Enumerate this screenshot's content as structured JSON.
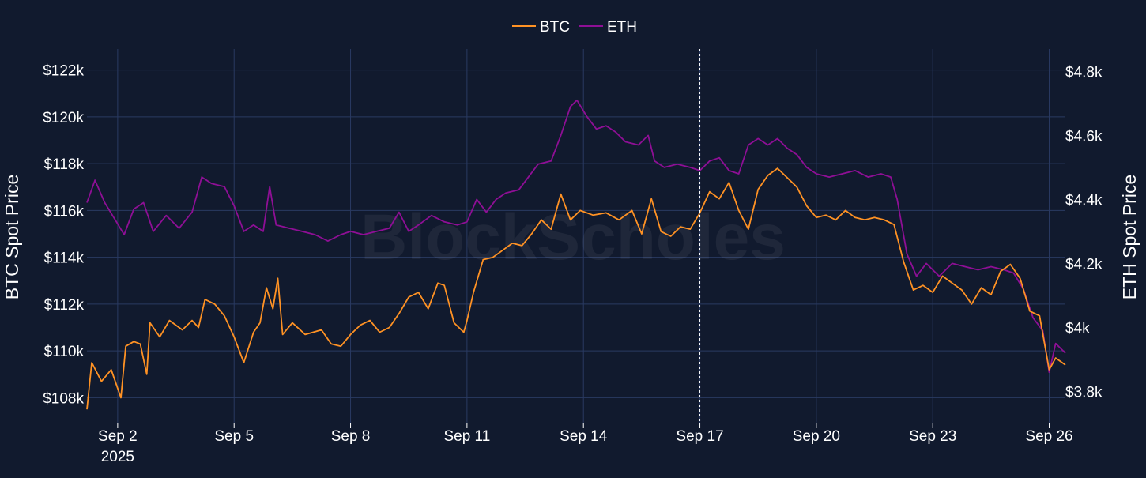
{
  "chart_data": {
    "type": "line",
    "watermark": "BlockScholes",
    "legend_position": "top-center",
    "grid": true,
    "colors": {
      "background": "#111a2e",
      "grid": "#2a3a62",
      "btc": "#ff9224",
      "eth": "#8e0f95",
      "marker_line": "#ffffff"
    },
    "x_axis": {
      "type": "date",
      "range": [
        "2025-09-01T05:00",
        "2025-09-26T10:00"
      ],
      "ticks": [
        {
          "date": "2025-09-02",
          "label": "Sep 2",
          "sublabel": "2025"
        },
        {
          "date": "2025-09-05",
          "label": "Sep 5"
        },
        {
          "date": "2025-09-08",
          "label": "Sep 8"
        },
        {
          "date": "2025-09-11",
          "label": "Sep 11"
        },
        {
          "date": "2025-09-14",
          "label": "Sep 14"
        },
        {
          "date": "2025-09-17",
          "label": "Sep 17"
        },
        {
          "date": "2025-09-20",
          "label": "Sep 20"
        },
        {
          "date": "2025-09-23",
          "label": "Sep 23"
        },
        {
          "date": "2025-09-26",
          "label": "Sep 26"
        }
      ]
    },
    "y_left": {
      "title": "BTC Spot Price",
      "range": [
        106900,
        122900
      ],
      "ticks": [
        {
          "value": 108000,
          "label": "$108k"
        },
        {
          "value": 110000,
          "label": "$110k"
        },
        {
          "value": 112000,
          "label": "$112k"
        },
        {
          "value": 114000,
          "label": "$114k"
        },
        {
          "value": 116000,
          "label": "$116k"
        },
        {
          "value": 118000,
          "label": "$118k"
        },
        {
          "value": 120000,
          "label": "$120k"
        },
        {
          "value": 122000,
          "label": "$122k"
        }
      ]
    },
    "y_right": {
      "title": "ETH Spot Price",
      "range": [
        3700,
        4870
      ],
      "ticks": [
        {
          "value": 3800,
          "label": "$3.8k"
        },
        {
          "value": 4000,
          "label": "$4k"
        },
        {
          "value": 4200,
          "label": "$4.2k"
        },
        {
          "value": 4400,
          "label": "$4.4k"
        },
        {
          "value": 4600,
          "label": "$4.6k"
        },
        {
          "value": 4800,
          "label": "$4.8k"
        }
      ]
    },
    "vertical_marker": "2025-09-17",
    "series": [
      {
        "name": "BTC",
        "axis": "left",
        "points": [
          [
            "2025-09-01T05:00",
            107500
          ],
          [
            "2025-09-01T08:00",
            109500
          ],
          [
            "2025-09-01T14:00",
            108700
          ],
          [
            "2025-09-01T20:00",
            109200
          ],
          [
            "2025-09-02T02:00",
            108000
          ],
          [
            "2025-09-02T05:00",
            110200
          ],
          [
            "2025-09-02T10:00",
            110400
          ],
          [
            "2025-09-02T14:00",
            110300
          ],
          [
            "2025-09-02T18:00",
            109000
          ],
          [
            "2025-09-02T20:00",
            111200
          ],
          [
            "2025-09-03T02:00",
            110600
          ],
          [
            "2025-09-03T08:00",
            111300
          ],
          [
            "2025-09-03T16:00",
            110900
          ],
          [
            "2025-09-03T22:00",
            111300
          ],
          [
            "2025-09-04T02:00",
            111000
          ],
          [
            "2025-09-04T06:00",
            112200
          ],
          [
            "2025-09-04T12:00",
            112000
          ],
          [
            "2025-09-04T18:00",
            111500
          ],
          [
            "2025-09-05T00:00",
            110600
          ],
          [
            "2025-09-05T06:00",
            109500
          ],
          [
            "2025-09-05T12:00",
            110800
          ],
          [
            "2025-09-05T16:00",
            111200
          ],
          [
            "2025-09-05T20:00",
            112700
          ],
          [
            "2025-09-06T00:00",
            111800
          ],
          [
            "2025-09-06T03:00",
            113100
          ],
          [
            "2025-09-06T06:00",
            110700
          ],
          [
            "2025-09-06T12:00",
            111200
          ],
          [
            "2025-09-06T20:00",
            110700
          ],
          [
            "2025-09-07T06:00",
            110900
          ],
          [
            "2025-09-07T12:00",
            110300
          ],
          [
            "2025-09-07T18:00",
            110200
          ],
          [
            "2025-09-08T00:00",
            110700
          ],
          [
            "2025-09-08T06:00",
            111100
          ],
          [
            "2025-09-08T12:00",
            111300
          ],
          [
            "2025-09-08T18:00",
            110800
          ],
          [
            "2025-09-09T00:00",
            111000
          ],
          [
            "2025-09-09T06:00",
            111600
          ],
          [
            "2025-09-09T12:00",
            112300
          ],
          [
            "2025-09-09T18:00",
            112500
          ],
          [
            "2025-09-10T00:00",
            111800
          ],
          [
            "2025-09-10T06:00",
            112900
          ],
          [
            "2025-09-10T10:00",
            112800
          ],
          [
            "2025-09-10T16:00",
            111200
          ],
          [
            "2025-09-10T22:00",
            110800
          ],
          [
            "2025-09-11T00:00",
            111300
          ],
          [
            "2025-09-11T04:00",
            112500
          ],
          [
            "2025-09-11T10:00",
            113900
          ],
          [
            "2025-09-11T16:00",
            114000
          ],
          [
            "2025-09-11T22:00",
            114300
          ],
          [
            "2025-09-12T04:00",
            114600
          ],
          [
            "2025-09-12T10:00",
            114500
          ],
          [
            "2025-09-12T16:00",
            115000
          ],
          [
            "2025-09-12T22:00",
            115600
          ],
          [
            "2025-09-13T04:00",
            115200
          ],
          [
            "2025-09-13T10:00",
            116700
          ],
          [
            "2025-09-13T16:00",
            115600
          ],
          [
            "2025-09-13T22:00",
            116000
          ],
          [
            "2025-09-14T06:00",
            115800
          ],
          [
            "2025-09-14T14:00",
            115900
          ],
          [
            "2025-09-14T22:00",
            115600
          ],
          [
            "2025-09-15T06:00",
            116000
          ],
          [
            "2025-09-15T12:00",
            115000
          ],
          [
            "2025-09-15T18:00",
            116500
          ],
          [
            "2025-09-16T00:00",
            115100
          ],
          [
            "2025-09-16T06:00",
            114900
          ],
          [
            "2025-09-16T12:00",
            115300
          ],
          [
            "2025-09-16T18:00",
            115200
          ],
          [
            "2025-09-17T00:00",
            115900
          ],
          [
            "2025-09-17T06:00",
            116800
          ],
          [
            "2025-09-17T12:00",
            116500
          ],
          [
            "2025-09-17T18:00",
            117200
          ],
          [
            "2025-09-18T00:00",
            116000
          ],
          [
            "2025-09-18T06:00",
            115200
          ],
          [
            "2025-09-18T12:00",
            116900
          ],
          [
            "2025-09-18T18:00",
            117500
          ],
          [
            "2025-09-19T00:00",
            117800
          ],
          [
            "2025-09-19T06:00",
            117400
          ],
          [
            "2025-09-19T12:00",
            117000
          ],
          [
            "2025-09-19T18:00",
            116200
          ],
          [
            "2025-09-20T00:00",
            115700
          ],
          [
            "2025-09-20T06:00",
            115800
          ],
          [
            "2025-09-20T12:00",
            115600
          ],
          [
            "2025-09-20T18:00",
            116000
          ],
          [
            "2025-09-21T00:00",
            115700
          ],
          [
            "2025-09-21T06:00",
            115600
          ],
          [
            "2025-09-21T12:00",
            115700
          ],
          [
            "2025-09-21T18:00",
            115600
          ],
          [
            "2025-09-22T00:00",
            115400
          ],
          [
            "2025-09-22T06:00",
            113800
          ],
          [
            "2025-09-22T12:00",
            112600
          ],
          [
            "2025-09-22T18:00",
            112800
          ],
          [
            "2025-09-23T00:00",
            112500
          ],
          [
            "2025-09-23T06:00",
            113200
          ],
          [
            "2025-09-23T12:00",
            112900
          ],
          [
            "2025-09-23T18:00",
            112600
          ],
          [
            "2025-09-24T00:00",
            112000
          ],
          [
            "2025-09-24T06:00",
            112700
          ],
          [
            "2025-09-24T12:00",
            112400
          ],
          [
            "2025-09-24T18:00",
            113400
          ],
          [
            "2025-09-25T00:00",
            113700
          ],
          [
            "2025-09-25T06:00",
            113100
          ],
          [
            "2025-09-25T12:00",
            111700
          ],
          [
            "2025-09-25T18:00",
            111500
          ],
          [
            "2025-09-26T00:00",
            109200
          ],
          [
            "2025-09-26T04:00",
            109700
          ],
          [
            "2025-09-26T10:00",
            109400
          ]
        ]
      },
      {
        "name": "ETH",
        "axis": "right",
        "points": [
          [
            "2025-09-01T05:00",
            4390
          ],
          [
            "2025-09-01T10:00",
            4460
          ],
          [
            "2025-09-01T16:00",
            4390
          ],
          [
            "2025-09-01T22:00",
            4340
          ],
          [
            "2025-09-02T04:00",
            4290
          ],
          [
            "2025-09-02T10:00",
            4370
          ],
          [
            "2025-09-02T16:00",
            4390
          ],
          [
            "2025-09-02T22:00",
            4300
          ],
          [
            "2025-09-03T06:00",
            4350
          ],
          [
            "2025-09-03T14:00",
            4310
          ],
          [
            "2025-09-03T22:00",
            4360
          ],
          [
            "2025-09-04T04:00",
            4470
          ],
          [
            "2025-09-04T10:00",
            4450
          ],
          [
            "2025-09-04T18:00",
            4440
          ],
          [
            "2025-09-05T00:00",
            4380
          ],
          [
            "2025-09-05T06:00",
            4300
          ],
          [
            "2025-09-05T12:00",
            4320
          ],
          [
            "2025-09-05T18:00",
            4300
          ],
          [
            "2025-09-05T22:00",
            4440
          ],
          [
            "2025-09-06T02:00",
            4320
          ],
          [
            "2025-09-06T10:00",
            4310
          ],
          [
            "2025-09-06T18:00",
            4300
          ],
          [
            "2025-09-07T02:00",
            4290
          ],
          [
            "2025-09-07T10:00",
            4270
          ],
          [
            "2025-09-07T18:00",
            4290
          ],
          [
            "2025-09-08T00:00",
            4300
          ],
          [
            "2025-09-08T08:00",
            4290
          ],
          [
            "2025-09-08T16:00",
            4300
          ],
          [
            "2025-09-09T00:00",
            4310
          ],
          [
            "2025-09-09T06:00",
            4360
          ],
          [
            "2025-09-09T12:00",
            4300
          ],
          [
            "2025-09-09T18:00",
            4320
          ],
          [
            "2025-09-10T02:00",
            4350
          ],
          [
            "2025-09-10T10:00",
            4330
          ],
          [
            "2025-09-10T18:00",
            4320
          ],
          [
            "2025-09-11T00:00",
            4330
          ],
          [
            "2025-09-11T06:00",
            4400
          ],
          [
            "2025-09-11T12:00",
            4360
          ],
          [
            "2025-09-11T18:00",
            4400
          ],
          [
            "2025-09-12T00:00",
            4420
          ],
          [
            "2025-09-12T08:00",
            4430
          ],
          [
            "2025-09-12T14:00",
            4470
          ],
          [
            "2025-09-12T20:00",
            4510
          ],
          [
            "2025-09-13T04:00",
            4520
          ],
          [
            "2025-09-13T10:00",
            4600
          ],
          [
            "2025-09-13T16:00",
            4690
          ],
          [
            "2025-09-13T20:00",
            4710
          ],
          [
            "2025-09-14T02:00",
            4660
          ],
          [
            "2025-09-14T08:00",
            4620
          ],
          [
            "2025-09-14T14:00",
            4630
          ],
          [
            "2025-09-14T20:00",
            4610
          ],
          [
            "2025-09-15T02:00",
            4580
          ],
          [
            "2025-09-15T10:00",
            4570
          ],
          [
            "2025-09-15T16:00",
            4600
          ],
          [
            "2025-09-15T20:00",
            4520
          ],
          [
            "2025-09-16T02:00",
            4500
          ],
          [
            "2025-09-16T10:00",
            4510
          ],
          [
            "2025-09-16T18:00",
            4500
          ],
          [
            "2025-09-17T00:00",
            4490
          ],
          [
            "2025-09-17T06:00",
            4520
          ],
          [
            "2025-09-17T12:00",
            4530
          ],
          [
            "2025-09-17T18:00",
            4490
          ],
          [
            "2025-09-18T00:00",
            4480
          ],
          [
            "2025-09-18T06:00",
            4570
          ],
          [
            "2025-09-18T12:00",
            4590
          ],
          [
            "2025-09-18T18:00",
            4570
          ],
          [
            "2025-09-19T00:00",
            4590
          ],
          [
            "2025-09-19T06:00",
            4560
          ],
          [
            "2025-09-19T12:00",
            4540
          ],
          [
            "2025-09-19T18:00",
            4500
          ],
          [
            "2025-09-20T00:00",
            4480
          ],
          [
            "2025-09-20T08:00",
            4470
          ],
          [
            "2025-09-20T16:00",
            4480
          ],
          [
            "2025-09-21T00:00",
            4490
          ],
          [
            "2025-09-21T08:00",
            4470
          ],
          [
            "2025-09-21T16:00",
            4480
          ],
          [
            "2025-09-21T22:00",
            4470
          ],
          [
            "2025-09-22T02:00",
            4400
          ],
          [
            "2025-09-22T08:00",
            4230
          ],
          [
            "2025-09-22T14:00",
            4160
          ],
          [
            "2025-09-22T20:00",
            4200
          ],
          [
            "2025-09-23T04:00",
            4160
          ],
          [
            "2025-09-23T12:00",
            4200
          ],
          [
            "2025-09-23T20:00",
            4190
          ],
          [
            "2025-09-24T04:00",
            4180
          ],
          [
            "2025-09-24T12:00",
            4190
          ],
          [
            "2025-09-24T20:00",
            4180
          ],
          [
            "2025-09-25T02:00",
            4170
          ],
          [
            "2025-09-25T08:00",
            4120
          ],
          [
            "2025-09-25T14:00",
            4030
          ],
          [
            "2025-09-25T20:00",
            3990
          ],
          [
            "2025-09-26T00:00",
            3860
          ],
          [
            "2025-09-26T04:00",
            3950
          ],
          [
            "2025-09-26T10:00",
            3920
          ]
        ]
      }
    ]
  }
}
